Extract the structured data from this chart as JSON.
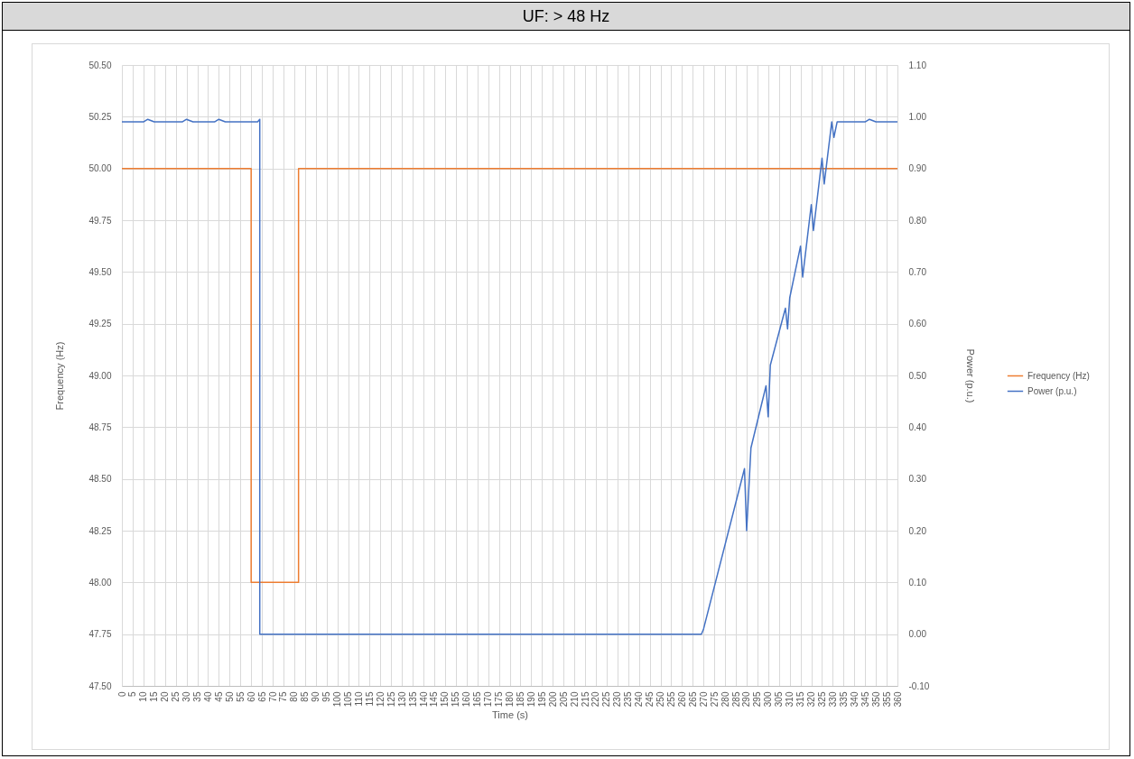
{
  "chart_data": {
    "type": "line",
    "title": "UF: > 48 Hz",
    "xlabel": "Time (s)",
    "ylabel": "Frequency (Hz)",
    "y2label": "Power (p.u.)",
    "series": [
      {
        "name": "Frequency (Hz)",
        "color": "#ed7d31",
        "x": [
          0,
          60,
          60,
          82,
          82,
          360
        ],
        "values": [
          50,
          50,
          48,
          48,
          50,
          50
        ]
      },
      {
        "name": "Power (p.u.)",
        "color": "#4472c4",
        "axis": "y2",
        "x": [
          0,
          10,
          12,
          15,
          28,
          30,
          33,
          43,
          45,
          48,
          63,
          64,
          64,
          269,
          270,
          289,
          290,
          292,
          299,
          300,
          301,
          308,
          309,
          310,
          315,
          316,
          320,
          321,
          325,
          326,
          329.5,
          330.5,
          332,
          345,
          347,
          350,
          360
        ],
        "values": [
          0.99,
          0.99,
          0.995,
          0.99,
          0.99,
          0.995,
          0.99,
          0.99,
          0.995,
          0.99,
          0.99,
          0.995,
          0,
          0,
          0.01,
          0.32,
          0.2,
          0.36,
          0.48,
          0.42,
          0.52,
          0.63,
          0.59,
          0.65,
          0.75,
          0.69,
          0.83,
          0.78,
          0.92,
          0.87,
          0.99,
          0.96,
          0.99,
          0.99,
          0.995,
          0.99,
          0.99
        ]
      }
    ],
    "xlim": [
      0,
      360
    ],
    "xticks": [
      0,
      5,
      10,
      15,
      20,
      25,
      30,
      35,
      40,
      45,
      50,
      55,
      60,
      65,
      70,
      75,
      80,
      85,
      90,
      95,
      100,
      105,
      110,
      115,
      120,
      125,
      130,
      135,
      140,
      145,
      150,
      155,
      160,
      165,
      170,
      175,
      180,
      185,
      190,
      195,
      200,
      205,
      210,
      215,
      220,
      225,
      230,
      235,
      240,
      245,
      250,
      255,
      260,
      265,
      270,
      275,
      280,
      285,
      290,
      295,
      300,
      305,
      310,
      315,
      320,
      325,
      330,
      335,
      340,
      345,
      350,
      355,
      360
    ],
    "ylim": [
      47.5,
      50.5
    ],
    "yticks": [
      {
        "value": 47.5,
        "label": "47.50"
      },
      {
        "value": 47.75,
        "label": "47.75"
      },
      {
        "value": 48,
        "label": "48.00"
      },
      {
        "value": 48.25,
        "label": "48.25"
      },
      {
        "value": 48.5,
        "label": "48.50"
      },
      {
        "value": 48.75,
        "label": "48.75"
      },
      {
        "value": 49,
        "label": "49.00"
      },
      {
        "value": 49.25,
        "label": "49.25"
      },
      {
        "value": 49.5,
        "label": "49.50"
      },
      {
        "value": 49.75,
        "label": "49.75"
      },
      {
        "value": 50,
        "label": "50.00"
      },
      {
        "value": 50.25,
        "label": "50.25"
      },
      {
        "value": 50.5,
        "label": "50.50"
      }
    ],
    "y2lim": [
      -0.1,
      1.1
    ],
    "y2ticks": [
      {
        "value": -0.1,
        "label": "-0.10"
      },
      {
        "value": 0,
        "label": "0.00"
      },
      {
        "value": 0.1,
        "label": "0.10"
      },
      {
        "value": 0.2,
        "label": "0.20"
      },
      {
        "value": 0.3,
        "label": "0.30"
      },
      {
        "value": 0.4,
        "label": "0.40"
      },
      {
        "value": 0.5,
        "label": "0.50"
      },
      {
        "value": 0.6,
        "label": "0.60"
      },
      {
        "value": 0.7,
        "label": "0.70"
      },
      {
        "value": 0.8,
        "label": "0.80"
      },
      {
        "value": 0.9,
        "label": "0.90"
      },
      {
        "value": 1,
        "label": "1.00"
      },
      {
        "value": 1.1,
        "label": "1.10"
      }
    ],
    "grid": true,
    "legend": "right",
    "line_style": "solid"
  }
}
